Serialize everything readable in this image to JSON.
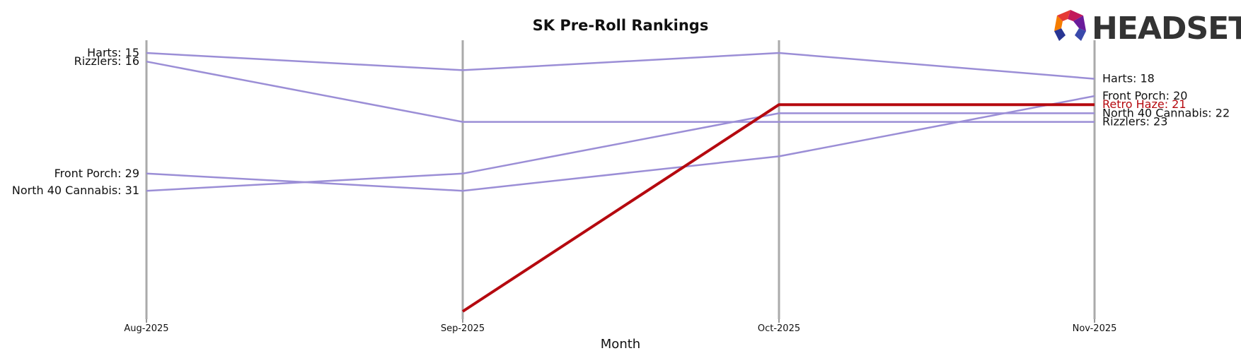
{
  "chart_data": {
    "type": "line",
    "title": "SK Pre-Roll Rankings",
    "xlabel": "Month",
    "ylabel": "",
    "x": [
      "Aug-2025",
      "Sep-2025",
      "Oct-2025",
      "Nov-2025"
    ],
    "ylim": [
      47,
      14
    ],
    "y_inverted": true,
    "grid": "vertical",
    "series": [
      {
        "name": "Harts",
        "values": [
          15,
          17,
          15,
          18
        ],
        "highlight": false,
        "color": "#9b8ed6"
      },
      {
        "name": "Rizzlers",
        "values": [
          16,
          23,
          23,
          23
        ],
        "highlight": false,
        "color": "#9b8ed6"
      },
      {
        "name": "Front Porch",
        "values": [
          29,
          31,
          27,
          20
        ],
        "highlight": false,
        "color": "#9b8ed6"
      },
      {
        "name": "North 40 Cannabis",
        "values": [
          31,
          29,
          22,
          22
        ],
        "highlight": false,
        "color": "#9b8ed6"
      },
      {
        "name": "Retro Haze",
        "values": [
          null,
          45,
          21,
          21
        ],
        "highlight": true,
        "color": "#b5090f"
      }
    ],
    "start_labels": [
      "Harts: 15",
      "Rizzlers: 16",
      "Front Porch: 29",
      "North 40 Cannabis: 31"
    ],
    "end_labels": [
      "Harts: 18",
      "Front Porch: 20",
      "Retro Haze: 21",
      "North 40 Cannabis: 22",
      "Rizzlers: 23"
    ]
  },
  "logo": {
    "text": "HEADSET"
  },
  "colors": {
    "line": "#9b8ed6",
    "highlight": "#b5090f",
    "gridline": "#aaaaaa"
  }
}
